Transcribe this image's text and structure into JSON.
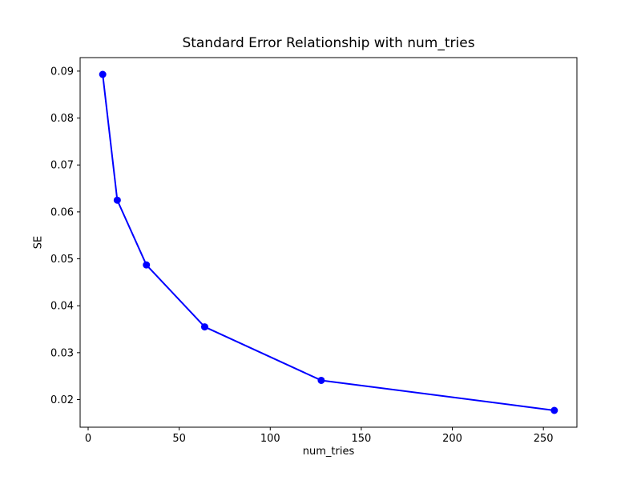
{
  "figure": {
    "title": "Standard Error Relationship with num_tries",
    "xlabel": "num_tries",
    "ylabel": "SE",
    "background_color": "#ffffff",
    "axes_color": "#000000"
  },
  "chart_data": {
    "type": "line",
    "title": "Standard Error Relationship with num_tries",
    "xlabel": "num_tries",
    "ylabel": "SE",
    "x": [
      8,
      16,
      32,
      64,
      128,
      256
    ],
    "y": [
      0.0893,
      0.0625,
      0.0487,
      0.0355,
      0.0241,
      0.0177
    ],
    "xlim": [
      -4.4,
      268.4
    ],
    "ylim": [
      0.01412,
      0.09288
    ],
    "xticks": [
      0,
      50,
      100,
      150,
      200,
      250
    ],
    "yticks": [
      0.02,
      0.03,
      0.04,
      0.05,
      0.06,
      0.07,
      0.08,
      0.09
    ],
    "ytick_decimals": 2,
    "line_color": "#0000ff",
    "marker": "o",
    "marker_color": "#0000ff",
    "grid": false,
    "legend_position": "none"
  }
}
